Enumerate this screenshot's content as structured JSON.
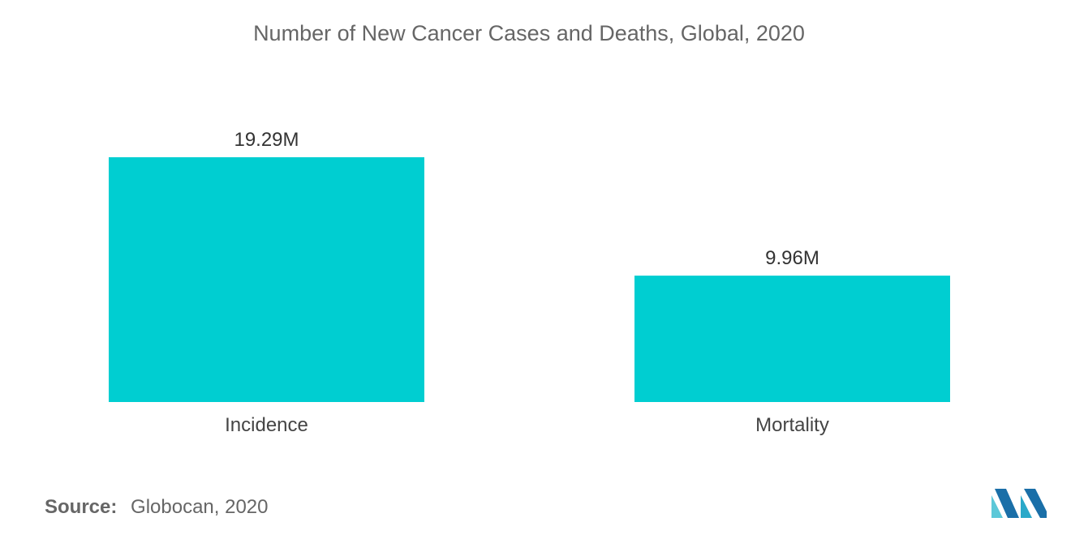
{
  "chart_data": {
    "type": "bar",
    "title": "Number of New Cancer Cases and Deaths, Global, 2020",
    "categories": [
      "Incidence",
      "Mortality"
    ],
    "values": [
      19.29,
      9.96
    ],
    "value_labels": [
      "19.29M",
      "9.96M"
    ],
    "unit": "M",
    "ylim": [
      0,
      19.29
    ],
    "grid": false,
    "bar_color": "#00CED1"
  },
  "source": {
    "label": "Source:",
    "value": "Globocan, 2020"
  },
  "logo": {
    "icon": "mordor-intelligence-logo-icon",
    "colors": [
      "#1a6fa8",
      "#2aa9c9",
      "#5cc8d8"
    ]
  }
}
